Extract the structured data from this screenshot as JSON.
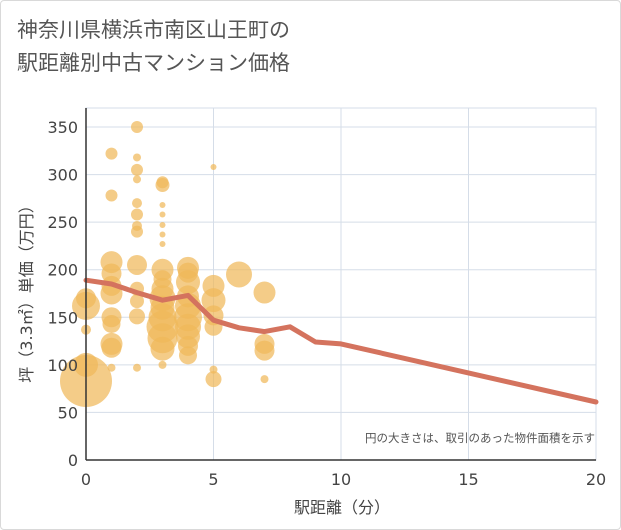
{
  "title": {
    "line1": "神奈川県横浜市南区山王町の",
    "line2": "駅距離別中古マンション価格"
  },
  "note": "円の大きさは、取引のあった物件面積を示す",
  "colors": {
    "bubble": "#f0b95a",
    "line": "#d4735e",
    "grid": "#d5dde8",
    "axis": "#333333"
  },
  "chart_data": {
    "type": "scatter",
    "xlabel": "駅距離（分）",
    "ylabel": "坪（3.3㎡）単価（万円）",
    "xlim": [
      0,
      20
    ],
    "ylim": [
      0,
      370
    ],
    "x_ticks": [
      "0",
      "5",
      "10",
      "15",
      "20"
    ],
    "y_ticks": [
      "0",
      "50",
      "100",
      "150",
      "200",
      "250",
      "300",
      "350"
    ],
    "grid": true,
    "bubbles": [
      [
        0,
        83,
        26
      ],
      [
        0,
        100,
        12
      ],
      [
        0,
        137,
        5
      ],
      [
        0,
        162,
        14
      ],
      [
        0,
        170,
        10
      ],
      [
        1,
        322,
        6
      ],
      [
        1,
        278,
        6
      ],
      [
        1,
        208,
        11
      ],
      [
        1,
        196,
        10
      ],
      [
        1,
        183,
        10
      ],
      [
        1,
        175,
        11
      ],
      [
        1,
        150,
        10
      ],
      [
        1,
        143,
        9
      ],
      [
        1,
        122,
        11
      ],
      [
        1,
        118,
        10
      ],
      [
        1,
        97,
        4
      ],
      [
        2,
        350,
        6
      ],
      [
        2,
        318,
        4
      ],
      [
        2,
        305,
        6
      ],
      [
        2,
        295,
        4
      ],
      [
        2,
        270,
        5
      ],
      [
        2,
        258,
        6
      ],
      [
        2,
        246,
        5
      ],
      [
        2,
        240,
        6
      ],
      [
        2,
        205,
        10
      ],
      [
        2,
        180,
        7
      ],
      [
        2,
        167,
        7
      ],
      [
        2,
        151,
        8
      ],
      [
        2,
        97,
        4
      ],
      [
        3,
        292,
        6
      ],
      [
        3,
        289,
        7
      ],
      [
        3,
        268,
        3
      ],
      [
        3,
        258,
        3
      ],
      [
        3,
        247,
        3
      ],
      [
        3,
        237,
        3
      ],
      [
        3,
        227,
        3
      ],
      [
        3,
        200,
        11
      ],
      [
        3,
        190,
        9
      ],
      [
        3,
        180,
        11
      ],
      [
        3,
        170,
        13
      ],
      [
        3,
        160,
        12
      ],
      [
        3,
        150,
        14
      ],
      [
        3,
        140,
        16
      ],
      [
        3,
        128,
        15
      ],
      [
        3,
        117,
        12
      ],
      [
        3,
        100,
        4
      ],
      [
        4,
        202,
        11
      ],
      [
        4,
        197,
        10
      ],
      [
        4,
        187,
        12
      ],
      [
        4,
        172,
        11
      ],
      [
        4,
        162,
        13
      ],
      [
        4,
        150,
        14
      ],
      [
        4,
        140,
        13
      ],
      [
        4,
        130,
        12
      ],
      [
        4,
        120,
        10
      ],
      [
        4,
        110,
        9
      ],
      [
        5,
        308,
        3
      ],
      [
        5,
        183,
        11
      ],
      [
        5,
        168,
        12
      ],
      [
        5,
        152,
        10
      ],
      [
        5,
        140,
        9
      ],
      [
        5,
        95,
        4
      ],
      [
        5,
        85,
        8
      ],
      [
        6,
        195,
        13
      ],
      [
        7,
        176,
        11
      ],
      [
        7,
        122,
        10
      ],
      [
        7,
        115,
        10
      ],
      [
        7,
        85,
        4
      ]
    ],
    "series": [
      {
        "x": [
          0,
          1,
          2,
          3,
          4,
          5,
          6,
          7,
          8,
          9,
          10,
          20
        ],
        "values": [
          189,
          185,
          176,
          168,
          173,
          147,
          139,
          135,
          140,
          124,
          122,
          61
        ]
      }
    ]
  }
}
